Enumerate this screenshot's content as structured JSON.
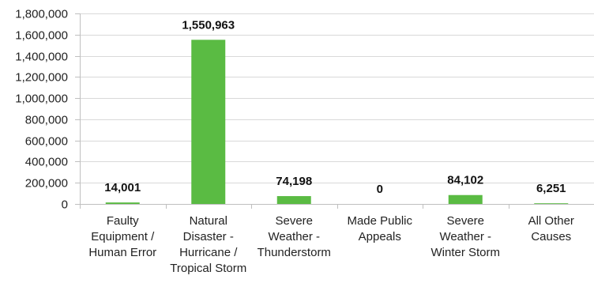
{
  "chart_data": {
    "type": "bar",
    "categories": [
      "Faulty Equipment / Human Error",
      "Natural Disaster - Hurricane / Tropical Storm",
      "Severe Weather - Thunderstorm",
      "Made Public Appeals",
      "Severe Weather - Winter Storm",
      "All Other Causes"
    ],
    "category_lines": [
      [
        "Faulty",
        "Equipment /",
        "Human Error"
      ],
      [
        "Natural",
        "Disaster -",
        "Hurricane /",
        "Tropical Storm"
      ],
      [
        "Severe",
        "Weather -",
        "Thunderstorm"
      ],
      [
        "Made Public",
        "Appeals"
      ],
      [
        "Severe",
        "Weather -",
        "Winter Storm"
      ],
      [
        "All Other",
        "Causes"
      ]
    ],
    "values": [
      14001,
      1550963,
      74198,
      0,
      84102,
      6251
    ],
    "value_labels": [
      "14,001",
      "1,550,963",
      "74,198",
      "0",
      "84,102",
      "6,251"
    ],
    "y_ticks": [
      "0",
      "200,000",
      "400,000",
      "600,000",
      "800,000",
      "1,000,000",
      "1,200,000",
      "1,400,000",
      "1,600,000",
      "1,800,000"
    ],
    "ylim": [
      0,
      1800000
    ],
    "grid": "horizontal",
    "bar_color": "#5abb43",
    "title": "",
    "xlabel": "",
    "ylabel": ""
  }
}
